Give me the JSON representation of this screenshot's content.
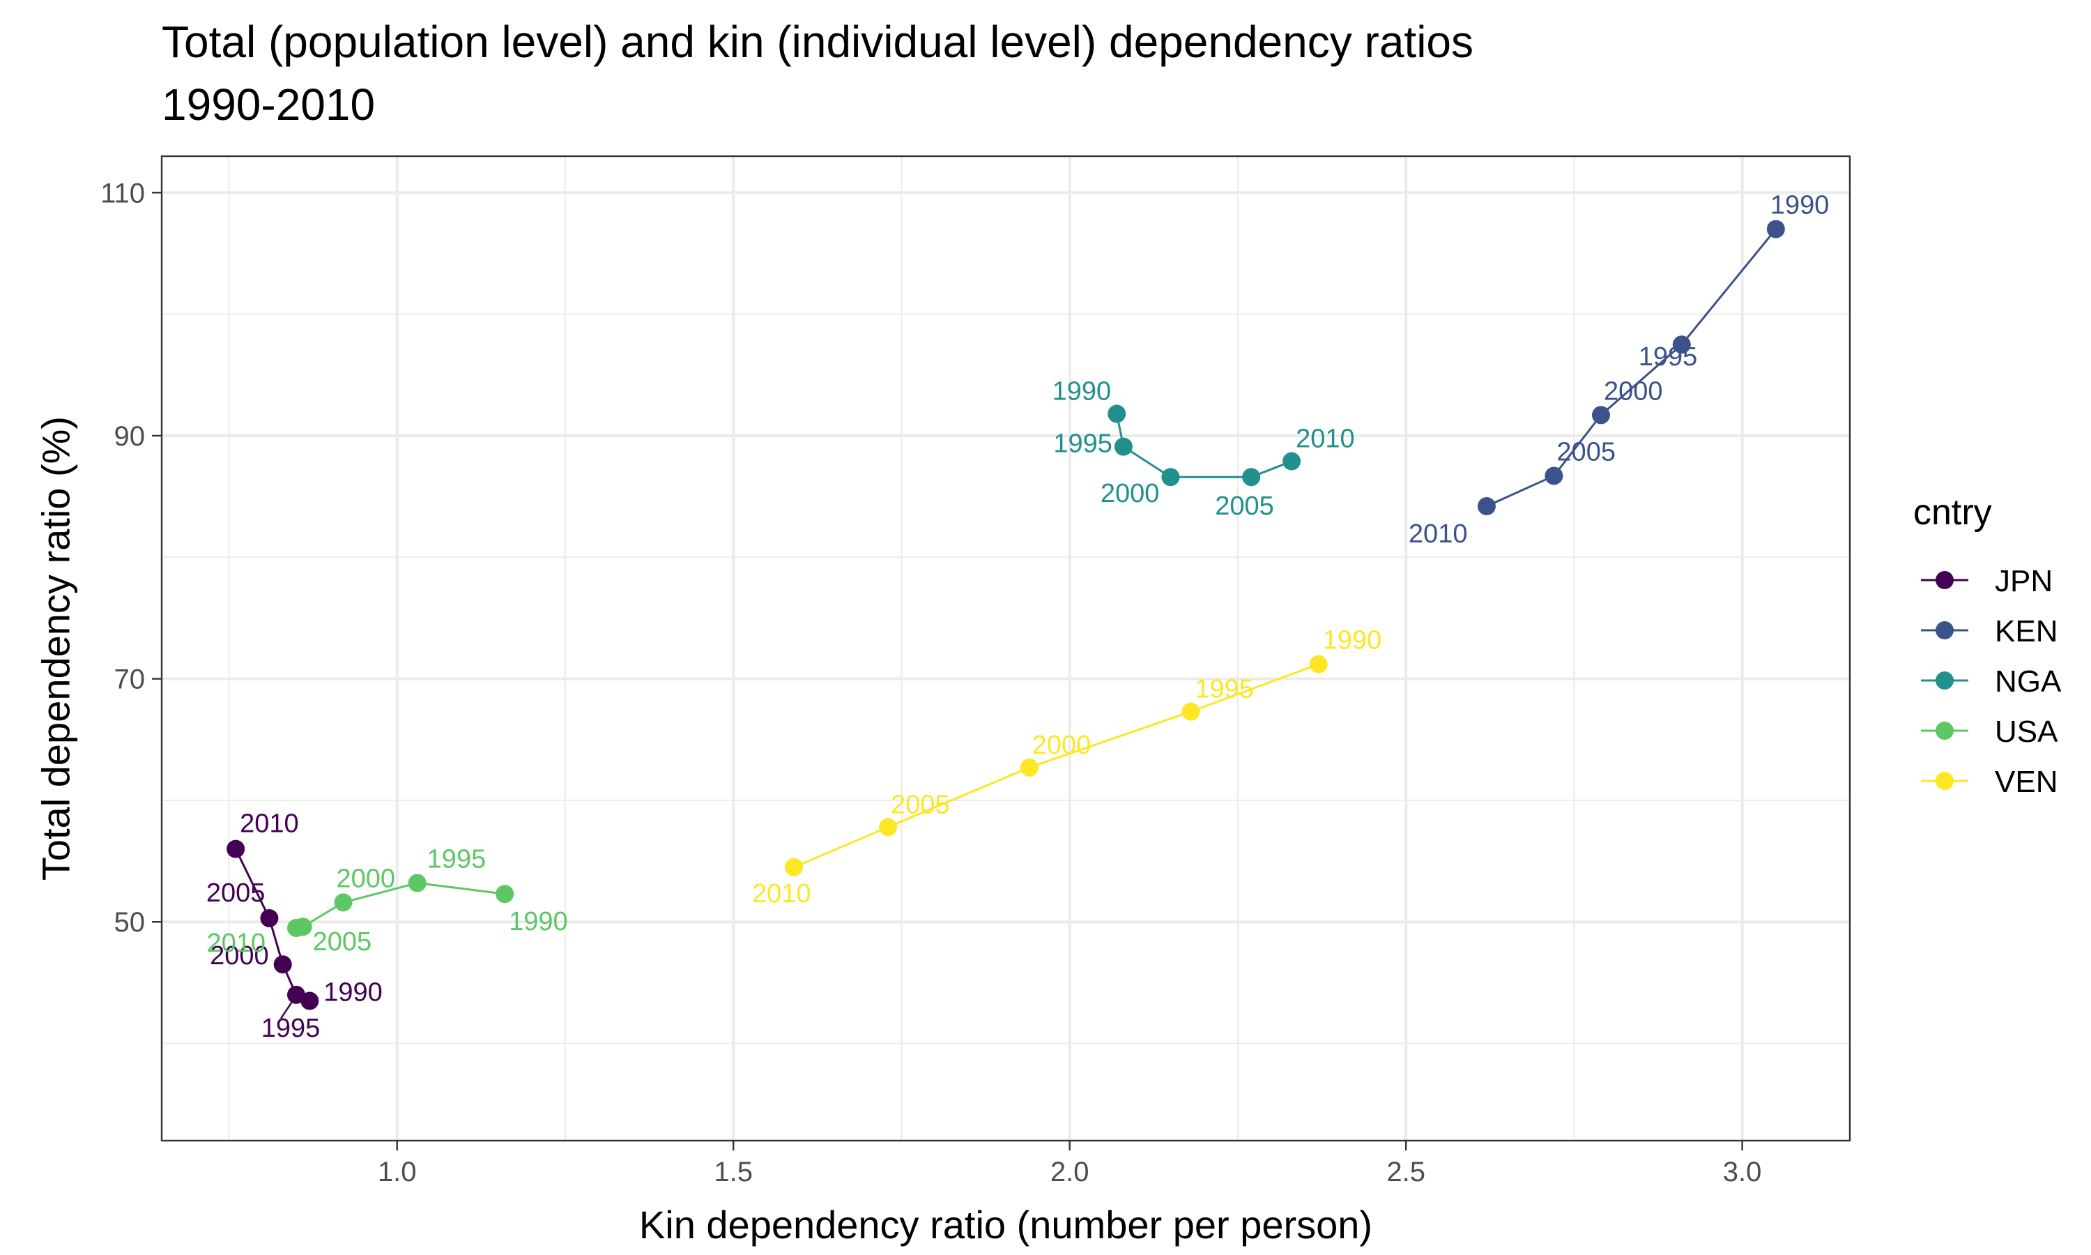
{
  "chart_data": {
    "type": "line",
    "title": "Total (population level) and kin (individual level) dependency ratios",
    "subtitle": "1990-2010",
    "xlabel": "Kin dependency ratio (number per person)",
    "ylabel": "Total dependency ratio (%)",
    "xlim": [
      0.65,
      3.16
    ],
    "ylim": [
      32,
      113
    ],
    "x_ticks": [
      1.0,
      1.5,
      2.0,
      2.5,
      3.0
    ],
    "x_tick_labels": [
      "1.0",
      "1.5",
      "2.0",
      "2.5",
      "3.0"
    ],
    "y_ticks": [
      50,
      70,
      90,
      110
    ],
    "y_tick_labels": [
      "50",
      "70",
      "90",
      "110"
    ],
    "grid": true,
    "legend_title": "cntry",
    "legend_position": "right",
    "series": [
      {
        "name": "JPN",
        "color": "#440154",
        "points": [
          {
            "year": "1990",
            "x": 0.87,
            "y": 43.5
          },
          {
            "year": "1995",
            "x": 0.85,
            "y": 44.0
          },
          {
            "year": "2000",
            "x": 0.83,
            "y": 46.5
          },
          {
            "year": "2005",
            "x": 0.81,
            "y": 50.3
          },
          {
            "year": "2010",
            "x": 0.76,
            "y": 56.0
          }
        ]
      },
      {
        "name": "KEN",
        "color": "#3B528B",
        "points": [
          {
            "year": "1990",
            "x": 3.05,
            "y": 107.0
          },
          {
            "year": "1995",
            "x": 2.91,
            "y": 97.5
          },
          {
            "year": "2000",
            "x": 2.79,
            "y": 91.7
          },
          {
            "year": "2005",
            "x": 2.72,
            "y": 86.7
          },
          {
            "year": "2010",
            "x": 2.62,
            "y": 84.2
          }
        ]
      },
      {
        "name": "NGA",
        "color": "#21908C",
        "points": [
          {
            "year": "1990",
            "x": 2.07,
            "y": 91.8
          },
          {
            "year": "1995",
            "x": 2.08,
            "y": 89.1
          },
          {
            "year": "2000",
            "x": 2.15,
            "y": 86.6
          },
          {
            "year": "2005",
            "x": 2.27,
            "y": 86.6
          },
          {
            "year": "2010",
            "x": 2.33,
            "y": 87.9
          }
        ]
      },
      {
        "name": "USA",
        "color": "#5DC863",
        "points": [
          {
            "year": "1990",
            "x": 1.16,
            "y": 52.3
          },
          {
            "year": "1995",
            "x": 1.03,
            "y": 53.2
          },
          {
            "year": "2000",
            "x": 0.92,
            "y": 51.6
          },
          {
            "year": "2005",
            "x": 0.86,
            "y": 49.6
          },
          {
            "year": "2010",
            "x": 0.85,
            "y": 49.5
          }
        ]
      },
      {
        "name": "VEN",
        "color": "#FDE725",
        "points": [
          {
            "year": "1990",
            "x": 2.37,
            "y": 71.2
          },
          {
            "year": "1995",
            "x": 2.18,
            "y": 67.3
          },
          {
            "year": "2000",
            "x": 1.94,
            "y": 62.7
          },
          {
            "year": "2005",
            "x": 1.73,
            "y": 57.8
          },
          {
            "year": "2010",
            "x": 1.59,
            "y": 54.5
          }
        ]
      }
    ]
  }
}
